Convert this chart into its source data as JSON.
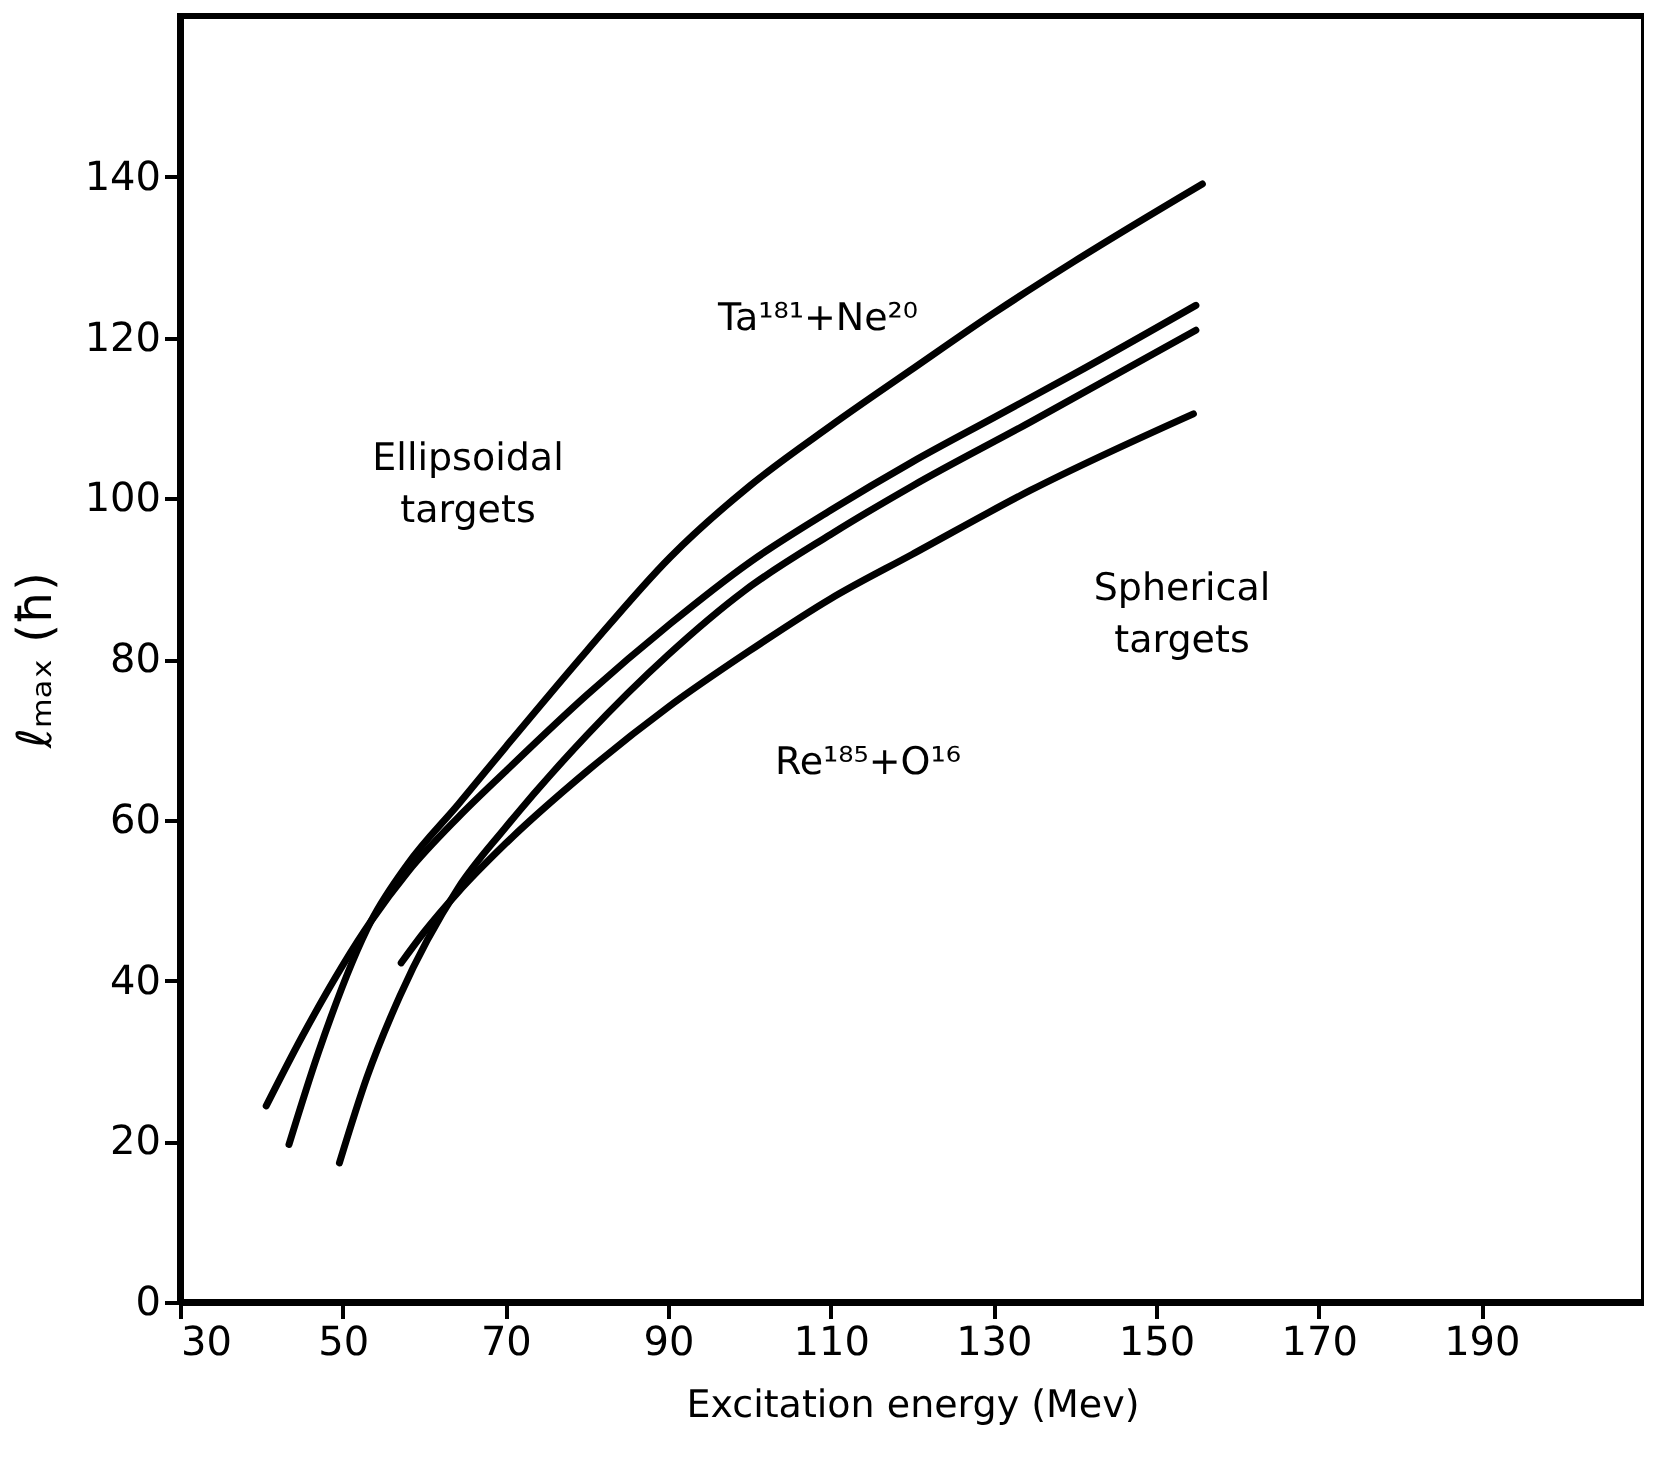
{
  "chart_data": {
    "type": "line",
    "xlabel": "Excitation energy (Mev)",
    "ylabel": "ℓₘₐₓ (ħ)",
    "xlim": [
      30,
      210
    ],
    "ylim": [
      0,
      160
    ],
    "xticks": [
      30,
      50,
      70,
      90,
      110,
      130,
      150,
      170,
      190
    ],
    "yticks": [
      0,
      20,
      40,
      60,
      80,
      100,
      120,
      140
    ],
    "grid": false,
    "marker": "none",
    "line_style": "solid",
    "series": [
      {
        "color": "#000000",
        "x": [
          43.4,
          47,
          53.5,
          58,
          64.2,
          70,
          80,
          90.3,
          100,
          110,
          119.8,
          130,
          140,
          155.7
        ],
        "values": [
          19.6,
          31,
          47.4,
          54.5,
          61.9,
          69,
          81,
          92.7,
          101.5,
          109,
          115.9,
          123,
          129.5,
          139.1
        ]
      },
      {
        "color": "#000000",
        "x": [
          40.6,
          45,
          53.5,
          58,
          64.2,
          70,
          80,
          90.3,
          100,
          110,
          120,
          130,
          140,
          154.9
        ],
        "values": [
          24.4,
          33,
          47.4,
          53.5,
          60.3,
          66,
          75.5,
          84.4,
          92,
          98.5,
          104.5,
          110,
          115.5,
          124
        ]
      },
      {
        "color": "#000000",
        "x": [
          49.6,
          53,
          57,
          64.2,
          70,
          80,
          90,
          99.4,
          110,
          120,
          134.6,
          154.9
        ],
        "values": [
          17.3,
          28,
          38,
          51.5,
          59,
          70.5,
          80.5,
          88.5,
          95.5,
          101.5,
          109.5,
          120.9
        ]
      },
      {
        "color": "#000000",
        "x": [
          57.2,
          60,
          64.2,
          70,
          80,
          90,
          100,
          110,
          120,
          134.6,
          154.6
        ],
        "values": [
          42.2,
          46,
          51,
          57,
          66,
          74,
          81,
          87.5,
          93,
          101,
          110.5
        ]
      }
    ],
    "annotations": [
      "Ta¹⁸¹+Ne²⁰",
      "Ellipsoidal\ntargets",
      "Spherical\ntargets",
      "Re¹⁸⁵+O¹⁶"
    ]
  }
}
